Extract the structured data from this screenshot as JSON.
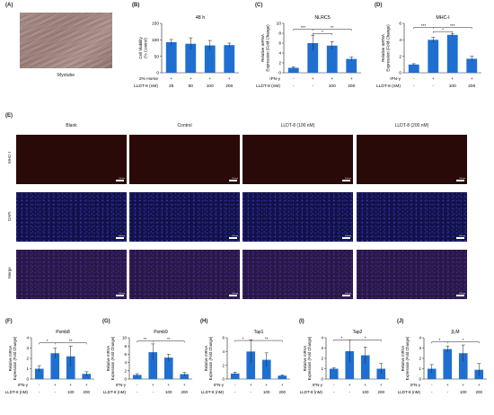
{
  "panel_letters": {
    "A": "(A)",
    "B": "(B)",
    "C": "(C)",
    "D": "(D)",
    "E": "(E)",
    "F": "(F)",
    "G": "(G)",
    "H": "(H)",
    "I": "(I)",
    "J": "(J)"
  },
  "panel_a": {
    "caption": "Myotube"
  },
  "panel_e": {
    "columns": [
      "Blank",
      "Control",
      "LLDT-8 (100 nM)",
      "LLDT-8 (200 nM)"
    ],
    "rows": [
      "MHC-I",
      "DAPI",
      "Merge"
    ],
    "scale_bar_text": "100 μm",
    "colors": {
      "MHC-I": "#2a0a08",
      "DAPI": "#12124a",
      "Merge": "#281848"
    }
  },
  "colors": {
    "bar": "#1f6fd1",
    "error": "#222222"
  },
  "chart_data": [
    {
      "id": "B",
      "type": "bar",
      "title": "48 h",
      "ylabel": "Cell Viability\n(% Control)",
      "ylim": [
        0,
        150
      ],
      "yticks": [
        0,
        50,
        100,
        150
      ],
      "values": [
        93,
        88,
        83,
        84
      ],
      "errors": [
        8,
        18,
        15,
        6
      ],
      "rows": [
        {
          "label": "2% Horse",
          "cells": [
            "+",
            "+",
            "+",
            "+"
          ]
        },
        {
          "label": "LLDT-8 (nM)",
          "cells": [
            "25",
            "50",
            "100",
            "200"
          ]
        }
      ],
      "sig": []
    },
    {
      "id": "C",
      "type": "bar",
      "title": "NLRC5",
      "ylabel": "Relative mRNA\nExpression (Fold Change)",
      "ylim": [
        0,
        10
      ],
      "yticks": [
        0,
        2,
        4,
        6,
        8,
        10
      ],
      "values": [
        1.0,
        6.0,
        5.5,
        2.8
      ],
      "errors": [
        0.2,
        1.6,
        0.8,
        0.4
      ],
      "rows": [
        {
          "label": "IFN-γ",
          "cells": [
            "-",
            "+",
            "+",
            "+"
          ]
        },
        {
          "label": "LLDT-8 (nM)",
          "cells": [
            "-",
            "-",
            "100",
            "200"
          ]
        }
      ],
      "sig": [
        {
          "from": 0,
          "to": 1,
          "text": "***",
          "y": 8.8
        },
        {
          "from": 1,
          "to": 3,
          "text": "**",
          "y": 8.8
        },
        {
          "from": 1,
          "to": 2,
          "text": "*",
          "y": 7.9
        }
      ]
    },
    {
      "id": "D",
      "type": "bar",
      "title": "MHC-I",
      "ylabel": "Relative mRNA\nExpression (Fold Change)",
      "ylim": [
        0,
        6
      ],
      "yticks": [
        0,
        2,
        4,
        6
      ],
      "values": [
        1.0,
        4.0,
        4.6,
        1.7
      ],
      "errors": [
        0.1,
        0.3,
        0.15,
        0.3
      ],
      "rows": [
        {
          "label": "IFN-γ",
          "cells": [
            "-",
            "+",
            "+",
            "+"
          ]
        },
        {
          "label": "LLDT-8 (nM)",
          "cells": [
            "-",
            "-",
            "100",
            "200"
          ]
        }
      ],
      "sig": [
        {
          "from": 0,
          "to": 1,
          "text": "***",
          "y": 5.5
        },
        {
          "from": 1,
          "to": 3,
          "text": "***",
          "y": 5.5
        },
        {
          "from": 1,
          "to": 2,
          "text": "*",
          "y": 5.0
        }
      ]
    },
    {
      "id": "F",
      "type": "bar",
      "title": "Psmb8",
      "ylabel": "Relative mRNA\nExpression (Fold Change)",
      "ylim": [
        0,
        4
      ],
      "yticks": [
        0,
        1,
        2,
        3,
        4
      ],
      "values": [
        1.0,
        2.5,
        2.2,
        0.5
      ],
      "errors": [
        0.3,
        0.5,
        1.0,
        0.2
      ],
      "rows": [
        {
          "label": "IFN-γ",
          "cells": [
            "-",
            "+",
            "+",
            "+"
          ]
        },
        {
          "label": "LLDT-8 (nM)",
          "cells": [
            "-",
            "-",
            "100",
            "200"
          ]
        }
      ],
      "sig": [
        {
          "from": 0,
          "to": 1,
          "text": "*",
          "y": 3.5
        },
        {
          "from": 1,
          "to": 3,
          "text": "**",
          "y": 3.5
        }
      ]
    },
    {
      "id": "G",
      "type": "bar",
      "title": "Psmb9",
      "ylabel": "Relative mRNA\nExpression (Fold Change)",
      "ylim": [
        0,
        10
      ],
      "yticks": [
        0,
        2,
        4,
        6,
        8,
        10
      ],
      "values": [
        1.0,
        6.5,
        5.2,
        1.2
      ],
      "errors": [
        0.3,
        2.0,
        0.8,
        0.4
      ],
      "rows": [
        {
          "label": "IFN-γ",
          "cells": [
            "-",
            "+",
            "+",
            "+"
          ]
        },
        {
          "label": "LLDT-8 (nM)",
          "cells": [
            "-",
            "-",
            "100",
            "200"
          ]
        }
      ],
      "sig": [
        {
          "from": 0,
          "to": 1,
          "text": "**",
          "y": 9.2
        },
        {
          "from": 1,
          "to": 3,
          "text": "**",
          "y": 9.2
        }
      ]
    },
    {
      "id": "H",
      "type": "bar",
      "title": "Tap1",
      "ylabel": "Relative mRNA\nExpression (Fold Change)",
      "ylim": [
        0,
        6
      ],
      "yticks": [
        0,
        2,
        4,
        6
      ],
      "values": [
        0.8,
        4.0,
        2.8,
        0.5
      ],
      "errors": [
        0.2,
        1.7,
        1.0,
        0.1
      ],
      "rows": [
        {
          "label": "IFN-γ",
          "cells": [
            "-",
            "+",
            "+",
            "+"
          ]
        },
        {
          "label": "LLDT-8 (nM)",
          "cells": [
            "-",
            "-",
            "100",
            "200"
          ]
        }
      ],
      "sig": [
        {
          "from": 0,
          "to": 1,
          "text": "*",
          "y": 5.6
        },
        {
          "from": 1,
          "to": 3,
          "text": "**",
          "y": 5.6
        }
      ]
    },
    {
      "id": "I",
      "type": "bar",
      "title": "Tap2",
      "ylabel": "Relative mRNA\nExpression (Fold Change)",
      "ylim": [
        0,
        4
      ],
      "yticks": [
        0,
        1,
        2,
        3,
        4
      ],
      "values": [
        1.0,
        2.7,
        2.3,
        1.0
      ],
      "errors": [
        0.1,
        1.1,
        0.8,
        0.5
      ],
      "rows": [
        {
          "label": "IFN-γ",
          "cells": [
            "-",
            "+",
            "+",
            "+"
          ]
        },
        {
          "label": "LLDT-8 (nM)",
          "cells": [
            "-",
            "-",
            "100",
            "200"
          ]
        }
      ],
      "sig": [
        {
          "from": 0,
          "to": 1,
          "text": "*",
          "y": 3.8
        },
        {
          "from": 1,
          "to": 3,
          "text": "*",
          "y": 3.8
        }
      ]
    },
    {
      "id": "J",
      "type": "bar",
      "title": "β₂M",
      "ylabel": "Relative mRNA\nExpression (Fold Change)",
      "ylim": [
        0,
        4
      ],
      "yticks": [
        0,
        1,
        2,
        3,
        4
      ],
      "values": [
        1.0,
        2.9,
        2.5,
        0.9
      ],
      "errors": [
        0.4,
        0.3,
        0.8,
        0.6
      ],
      "rows": [
        {
          "label": "IFN-γ",
          "cells": [
            "-",
            "+",
            "+",
            "+"
          ]
        },
        {
          "label": "LLDT-8 (nM)",
          "cells": [
            "-",
            "-",
            "100",
            "200"
          ]
        }
      ],
      "sig": [
        {
          "from": 0,
          "to": 1,
          "text": "*",
          "y": 3.6
        },
        {
          "from": 1,
          "to": 3,
          "text": "*",
          "y": 3.6
        }
      ]
    }
  ]
}
